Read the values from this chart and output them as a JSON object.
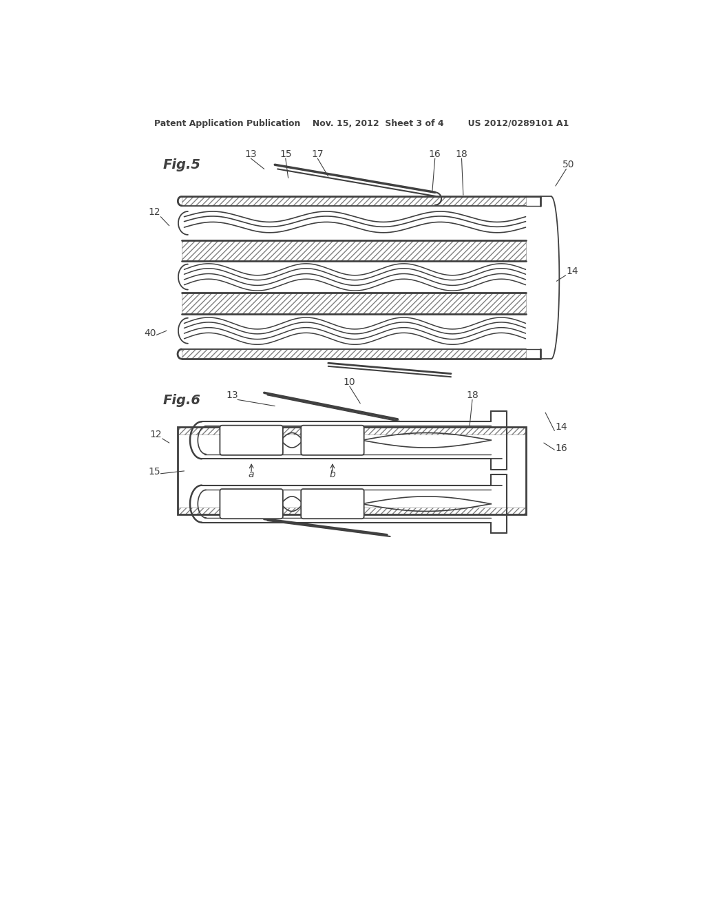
{
  "bg_color": "#ffffff",
  "lc": "#404040",
  "header": "Patent Application Publication    Nov. 15, 2012  Sheet 3 of 4        US 2012/0289101 A1",
  "fig5_label": "Fig.5",
  "fig6_label": "Fig.6"
}
